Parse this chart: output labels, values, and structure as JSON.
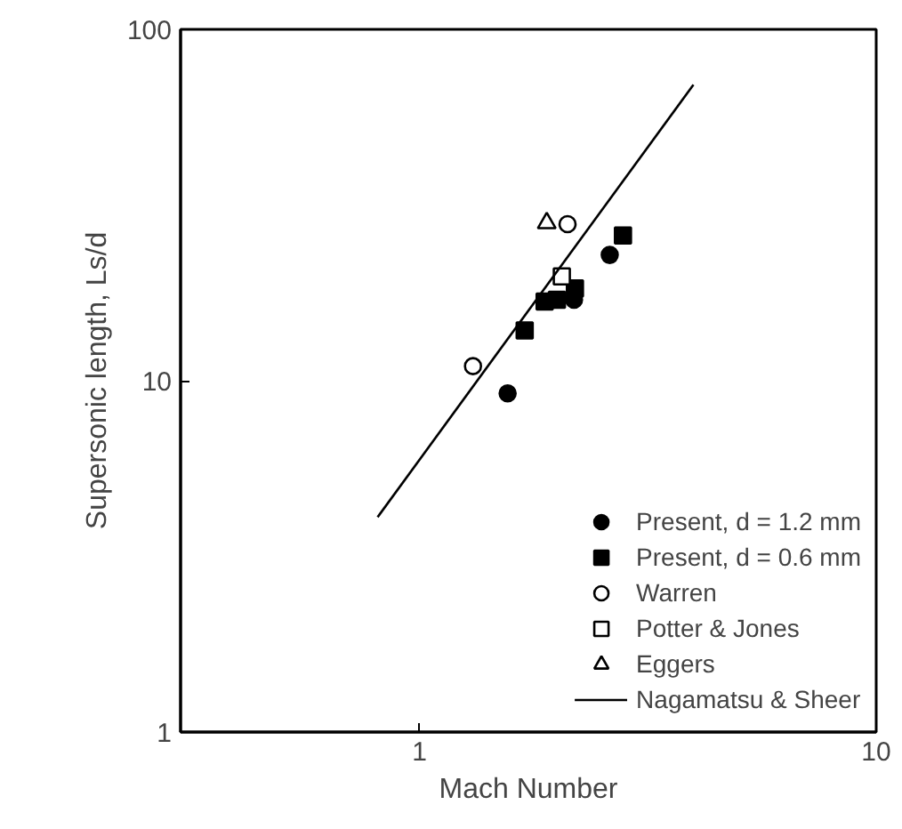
{
  "chart_data": {
    "type": "scatter",
    "xlabel": "Mach Number",
    "ylabel": "Supersonic length, Ls/d",
    "log": "xy",
    "xlim": [
      0.3,
      10
    ],
    "ylim": [
      1,
      100
    ],
    "xticks": [
      1,
      10
    ],
    "yticks": [
      1,
      10,
      100
    ],
    "grid": false,
    "legend": "bottom right",
    "series": [
      {
        "name": "Present, d = 1.2 mm",
        "color": "#000000",
        "marker": "circle",
        "x": [
          1.56,
          2.61,
          2.18
        ],
        "values": [
          9.2,
          22.8,
          17.0
        ]
      },
      {
        "name": "Present, d = 0.6 mm",
        "color": "#000000",
        "marker": "square",
        "x": [
          1.7,
          2.79,
          1.88,
          2.0,
          2.19
        ],
        "values": [
          13.9,
          25.9,
          16.8,
          17.0,
          18.3
        ]
      },
      {
        "name": "Warren",
        "color": "#ffffff",
        "marker": "circle",
        "x": [
          1.31,
          2.11
        ],
        "values": [
          11.0,
          27.9
        ]
      },
      {
        "name": "Potter & Jones",
        "color": "#ffffff",
        "marker": "square",
        "x": [
          2.05
        ],
        "values": [
          19.8
        ]
      },
      {
        "name": "Eggers",
        "color": "#ffffff",
        "marker": "triangle",
        "x": [
          1.9
        ],
        "values": [
          28.1
        ]
      },
      {
        "name": "Nagamatsu & Sheer",
        "type": "line",
        "color": "#000000",
        "x": [
          0.81,
          3.98
        ],
        "values": [
          4.09,
          69.6
        ]
      }
    ]
  }
}
